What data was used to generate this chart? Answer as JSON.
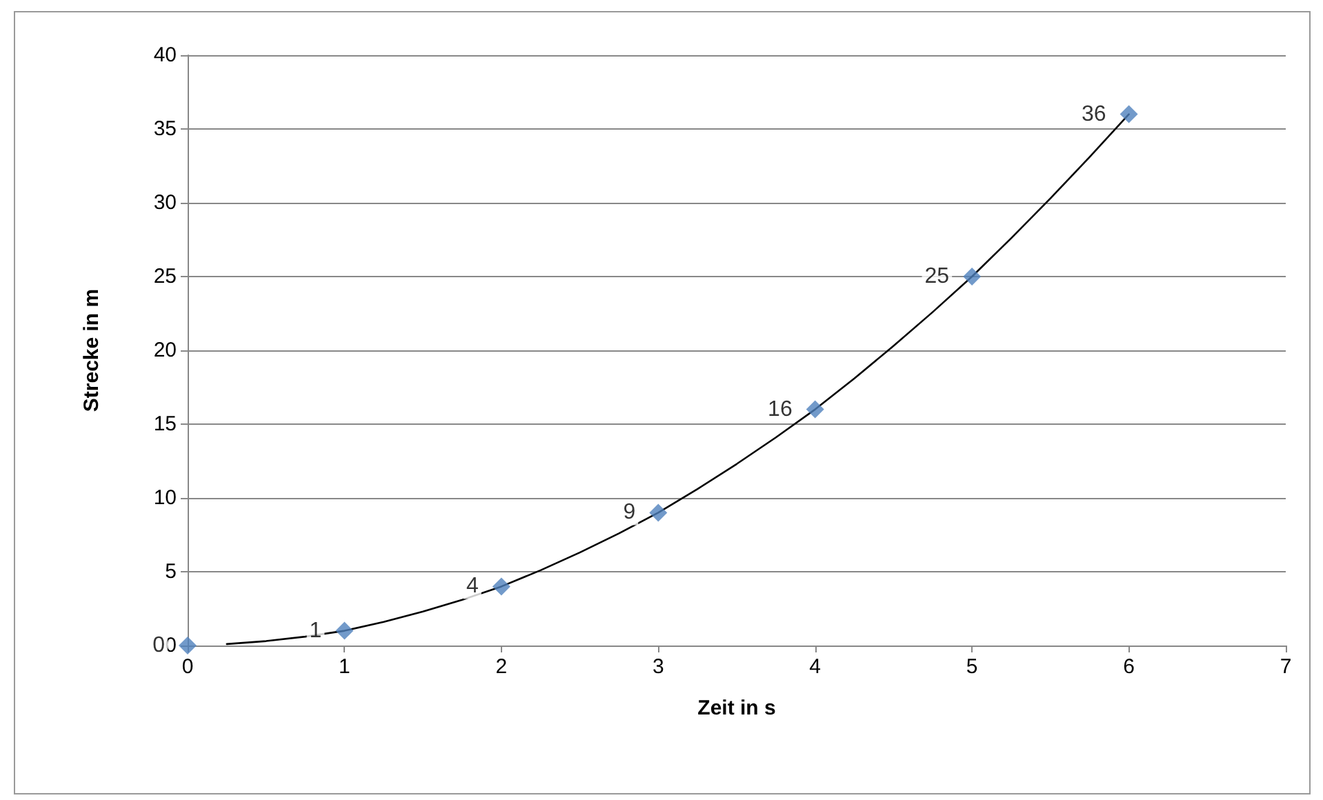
{
  "chart_data": {
    "type": "scatter",
    "xlabel": "Zeit in s",
    "ylabel": "Strecke in m",
    "x": [
      0,
      1,
      2,
      3,
      4,
      5,
      6
    ],
    "series": [
      {
        "color": "#4f81bd",
        "values": [
          0,
          1,
          4,
          9,
          16,
          25,
          36
        ],
        "value_labels": [
          "0",
          "1",
          "4",
          "9",
          "16",
          "25",
          "36"
        ]
      },
      {
        "type": "line",
        "color": "#000000",
        "marker": "none",
        "x": [
          0.25,
          0.5,
          0.75,
          1,
          1.25,
          1.5,
          1.75,
          2,
          2.25,
          2.5,
          2.75,
          3,
          3.25,
          3.5,
          3.75,
          4,
          4.25,
          4.5,
          4.75,
          5,
          5.25,
          5.5,
          5.75,
          6
        ],
        "values": [
          0.1,
          0.3,
          0.6,
          1,
          1.6,
          2.3,
          3.1,
          4,
          5.1,
          6.3,
          7.6,
          9,
          10.6,
          12.3,
          14.1,
          16,
          18.1,
          20.3,
          22.6,
          25,
          27.6,
          30.3,
          33.1,
          36
        ]
      }
    ],
    "xlim": [
      0,
      7
    ],
    "xticks": [
      0,
      1,
      2,
      3,
      4,
      5,
      6,
      7
    ],
    "ylim": [
      0,
      40
    ],
    "yticks": [
      0,
      5,
      10,
      15,
      20,
      25,
      30,
      35,
      40
    ],
    "grid": "y",
    "marker": "diamond",
    "line_style": "solid"
  }
}
